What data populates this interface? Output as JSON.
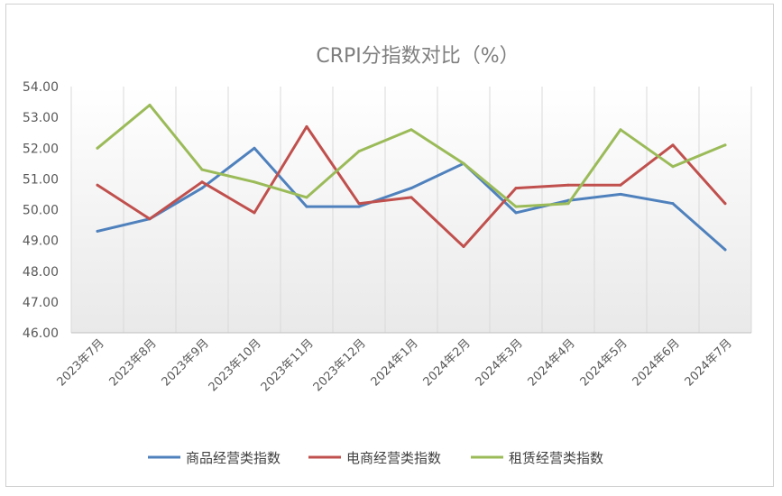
{
  "chart_data": {
    "type": "line",
    "title": "CRPI分指数对比（%）",
    "xlabel": "",
    "ylabel": "",
    "ylim": [
      46.0,
      54.0
    ],
    "y_ticks": [
      "46.00",
      "47.00",
      "48.00",
      "49.00",
      "50.00",
      "51.00",
      "52.00",
      "53.00",
      "54.00"
    ],
    "categories": [
      "2023年7月",
      "2023年8月",
      "2023年9月",
      "2023年10月",
      "2023年11月",
      "2023年12月",
      "2024年1月",
      "2024年2月",
      "2024年3月",
      "2024年4月",
      "2024年5月",
      "2024年6月",
      "2024年7月"
    ],
    "series": [
      {
        "name": "商品经营类指数",
        "color": "#4f81bd",
        "values": [
          49.3,
          49.7,
          50.7,
          52.0,
          50.1,
          50.1,
          50.7,
          51.5,
          49.9,
          50.3,
          50.5,
          50.2,
          48.7
        ]
      },
      {
        "name": "电商经营类指数",
        "color": "#c0504d",
        "values": [
          50.8,
          49.7,
          50.9,
          49.9,
          52.7,
          50.2,
          50.4,
          48.8,
          50.7,
          50.8,
          50.8,
          52.1,
          50.2
        ]
      },
      {
        "name": "租赁经营类指数",
        "color": "#9bbb59",
        "values": [
          52.0,
          53.4,
          51.3,
          50.9,
          50.4,
          51.9,
          52.6,
          51.5,
          50.1,
          50.2,
          52.6,
          51.4,
          52.1
        ]
      }
    ],
    "grid": "vertical",
    "legend_position": "bottom"
  }
}
